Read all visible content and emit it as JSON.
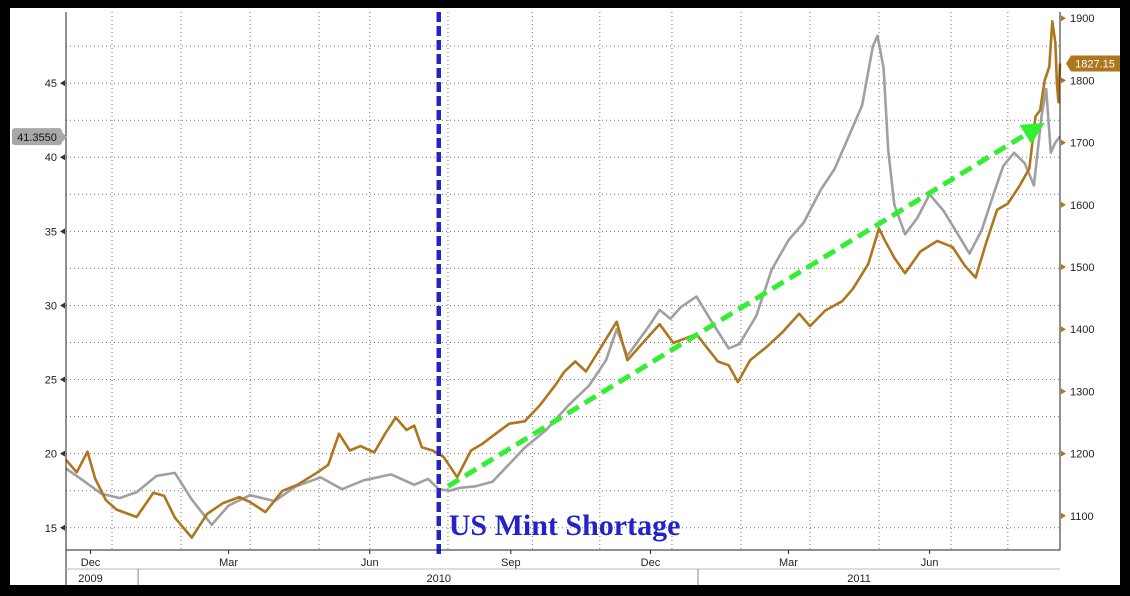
{
  "chart_data": {
    "type": "line",
    "title": "",
    "xlabel": "",
    "x_axis": {
      "range": [
        "2009-11-15",
        "2011-08-25"
      ],
      "month_ticks": [
        {
          "date": "2009-12-01",
          "label": "Dec"
        },
        {
          "date": "2010-03-01",
          "label": "Mar"
        },
        {
          "date": "2010-06-01",
          "label": "Jun"
        },
        {
          "date": "2010-09-01",
          "label": "Sep"
        },
        {
          "date": "2010-12-01",
          "label": "Dec"
        },
        {
          "date": "2011-03-01",
          "label": "Mar"
        },
        {
          "date": "2011-06-01",
          "label": "Jun"
        }
      ],
      "year_labels": [
        {
          "date": "2009-12-01",
          "label": "2009"
        },
        {
          "date": "2010-07-16",
          "label": "2010"
        },
        {
          "date": "2011-04-16",
          "label": "2011"
        }
      ],
      "year_dividers": [
        "2010-01-01",
        "2011-01-01"
      ],
      "gridlines": [
        "2009-12-15",
        "2010-01-29",
        "2010-03-15",
        "2010-04-29",
        "2010-06-01",
        "2010-07-22",
        "2010-09-15",
        "2010-10-29",
        "2010-12-15",
        "2011-01-29",
        "2011-03-15",
        "2011-04-29",
        "2011-06-15",
        "2011-07-22"
      ]
    },
    "y_left": {
      "range": [
        13.5,
        49.8
      ],
      "ticks": [
        15,
        20,
        25,
        30,
        35,
        40,
        45
      ],
      "gridlines": [
        17.5,
        22.5,
        27.5,
        32.5,
        37.5,
        42.5,
        47.5
      ],
      "current_value_label": "41.3550",
      "current_value": 41.355
    },
    "y_right": {
      "range": [
        1045,
        1910
      ],
      "ticks": [
        1100,
        1200,
        1300,
        1400,
        1500,
        1600,
        1700,
        1800,
        1900
      ],
      "current_value_label": "1827.15",
      "current_value": 1827.15
    },
    "grid": true,
    "series": [
      {
        "color": "#a0a0a0",
        "axis": "left",
        "points": [
          [
            "2009-11-15",
            19.0
          ],
          [
            "2009-11-26",
            18.2
          ],
          [
            "2009-12-08",
            17.3
          ],
          [
            "2009-12-20",
            17.0
          ],
          [
            "2009-12-31",
            17.4
          ],
          [
            "2010-01-13",
            18.5
          ],
          [
            "2010-01-25",
            18.7
          ],
          [
            "2010-02-05",
            16.9
          ],
          [
            "2010-02-18",
            15.2
          ],
          [
            "2010-03-01",
            16.5
          ],
          [
            "2010-03-15",
            17.2
          ],
          [
            "2010-03-31",
            16.8
          ],
          [
            "2010-04-14",
            17.8
          ],
          [
            "2010-04-30",
            18.4
          ],
          [
            "2010-05-14",
            17.6
          ],
          [
            "2010-05-28",
            18.2
          ],
          [
            "2010-06-15",
            18.6
          ],
          [
            "2010-06-30",
            17.9
          ],
          [
            "2010-07-09",
            18.3
          ],
          [
            "2010-07-16",
            17.6
          ],
          [
            "2010-07-23",
            17.5
          ],
          [
            "2010-07-30",
            17.7
          ],
          [
            "2010-08-09",
            17.8
          ],
          [
            "2010-08-20",
            18.1
          ],
          [
            "2010-08-31",
            19.3
          ],
          [
            "2010-09-10",
            20.4
          ],
          [
            "2010-09-24",
            21.6
          ],
          [
            "2010-10-08",
            23.2
          ],
          [
            "2010-10-22",
            24.6
          ],
          [
            "2010-11-02",
            26.3
          ],
          [
            "2010-11-09",
            28.4
          ],
          [
            "2010-11-16",
            26.6
          ],
          [
            "2010-11-30",
            28.6
          ],
          [
            "2010-12-07",
            29.7
          ],
          [
            "2010-12-14",
            29.1
          ],
          [
            "2010-12-21",
            29.9
          ],
          [
            "2010-12-31",
            30.6
          ],
          [
            "2011-01-10",
            28.9
          ],
          [
            "2011-01-21",
            27.1
          ],
          [
            "2011-01-28",
            27.4
          ],
          [
            "2011-02-08",
            29.3
          ],
          [
            "2011-02-18",
            32.4
          ],
          [
            "2011-03-01",
            34.4
          ],
          [
            "2011-03-11",
            35.6
          ],
          [
            "2011-03-22",
            37.8
          ],
          [
            "2011-03-31",
            39.2
          ],
          [
            "2011-04-08",
            41.1
          ],
          [
            "2011-04-18",
            43.5
          ],
          [
            "2011-04-25",
            47.5
          ],
          [
            "2011-04-28",
            48.2
          ],
          [
            "2011-05-02",
            46.0
          ],
          [
            "2011-05-05",
            40.5
          ],
          [
            "2011-05-09",
            36.8
          ],
          [
            "2011-05-16",
            34.8
          ],
          [
            "2011-05-24",
            35.9
          ],
          [
            "2011-06-01",
            37.5
          ],
          [
            "2011-06-10",
            36.4
          ],
          [
            "2011-06-20",
            34.7
          ],
          [
            "2011-06-27",
            33.5
          ],
          [
            "2011-07-05",
            35.1
          ],
          [
            "2011-07-12",
            37.3
          ],
          [
            "2011-07-19",
            39.4
          ],
          [
            "2011-07-26",
            40.3
          ],
          [
            "2011-08-02",
            39.6
          ],
          [
            "2011-08-08",
            38.1
          ],
          [
            "2011-08-13",
            42.8
          ],
          [
            "2011-08-16",
            44.6
          ],
          [
            "2011-08-19",
            40.3
          ],
          [
            "2011-08-22",
            41.0
          ],
          [
            "2011-08-25",
            41.4
          ]
        ]
      },
      {
        "color": "#b0761e",
        "axis": "right",
        "points": [
          [
            "2009-11-15",
            1190
          ],
          [
            "2009-11-22",
            1170
          ],
          [
            "2009-11-29",
            1203
          ],
          [
            "2009-12-04",
            1160
          ],
          [
            "2009-12-11",
            1125
          ],
          [
            "2009-12-18",
            1110
          ],
          [
            "2009-12-31",
            1098
          ],
          [
            "2010-01-11",
            1137
          ],
          [
            "2010-01-18",
            1132
          ],
          [
            "2010-01-25",
            1097
          ],
          [
            "2010-02-05",
            1065
          ],
          [
            "2010-02-15",
            1103
          ],
          [
            "2010-02-25",
            1120
          ],
          [
            "2010-03-08",
            1130
          ],
          [
            "2010-03-15",
            1122
          ],
          [
            "2010-03-25",
            1106
          ],
          [
            "2010-04-05",
            1140
          ],
          [
            "2010-04-15",
            1150
          ],
          [
            "2010-04-28",
            1170
          ],
          [
            "2010-05-05",
            1182
          ],
          [
            "2010-05-12",
            1232
          ],
          [
            "2010-05-19",
            1205
          ],
          [
            "2010-05-26",
            1212
          ],
          [
            "2010-06-04",
            1202
          ],
          [
            "2010-06-11",
            1232
          ],
          [
            "2010-06-18",
            1258
          ],
          [
            "2010-06-25",
            1238
          ],
          [
            "2010-06-30",
            1245
          ],
          [
            "2010-07-05",
            1210
          ],
          [
            "2010-07-12",
            1205
          ],
          [
            "2010-07-19",
            1195
          ],
          [
            "2010-07-28",
            1162
          ],
          [
            "2010-08-06",
            1205
          ],
          [
            "2010-08-13",
            1215
          ],
          [
            "2010-08-20",
            1228
          ],
          [
            "2010-08-31",
            1248
          ],
          [
            "2010-09-10",
            1252
          ],
          [
            "2010-09-20",
            1278
          ],
          [
            "2010-09-30",
            1310
          ],
          [
            "2010-10-06",
            1332
          ],
          [
            "2010-10-13",
            1348
          ],
          [
            "2010-10-20",
            1332
          ],
          [
            "2010-11-04",
            1392
          ],
          [
            "2010-11-09",
            1412
          ],
          [
            "2010-11-16",
            1350
          ],
          [
            "2010-11-26",
            1378
          ],
          [
            "2010-12-07",
            1408
          ],
          [
            "2010-12-16",
            1378
          ],
          [
            "2010-12-31",
            1392
          ],
          [
            "2011-01-07",
            1370
          ],
          [
            "2011-01-14",
            1348
          ],
          [
            "2011-01-21",
            1342
          ],
          [
            "2011-01-27",
            1315
          ],
          [
            "2011-02-04",
            1350
          ],
          [
            "2011-02-15",
            1372
          ],
          [
            "2011-02-25",
            1395
          ],
          [
            "2011-03-08",
            1425
          ],
          [
            "2011-03-15",
            1405
          ],
          [
            "2011-03-25",
            1430
          ],
          [
            "2011-04-05",
            1445
          ],
          [
            "2011-04-12",
            1465
          ],
          [
            "2011-04-22",
            1505
          ],
          [
            "2011-04-29",
            1562
          ],
          [
            "2011-05-03",
            1542
          ],
          [
            "2011-05-09",
            1515
          ],
          [
            "2011-05-16",
            1490
          ],
          [
            "2011-05-26",
            1525
          ],
          [
            "2011-06-06",
            1542
          ],
          [
            "2011-06-16",
            1532
          ],
          [
            "2011-06-24",
            1502
          ],
          [
            "2011-07-01",
            1483
          ],
          [
            "2011-07-08",
            1540
          ],
          [
            "2011-07-15",
            1592
          ],
          [
            "2011-07-22",
            1602
          ],
          [
            "2011-07-29",
            1628
          ],
          [
            "2011-08-05",
            1658
          ],
          [
            "2011-08-09",
            1742
          ],
          [
            "2011-08-12",
            1752
          ],
          [
            "2011-08-15",
            1800
          ],
          [
            "2011-08-18",
            1822
          ],
          [
            "2011-08-20",
            1895
          ],
          [
            "2011-08-22",
            1860
          ],
          [
            "2011-08-23",
            1795
          ],
          [
            "2011-08-24",
            1765
          ],
          [
            "2011-08-25",
            1827
          ]
        ]
      }
    ],
    "annotations": [
      {
        "type": "vline",
        "date": "2010-07-16",
        "color": "#2323c8",
        "style": "dashed"
      },
      {
        "type": "text",
        "text": "US Mint Shortage",
        "date": "2010-07-16",
        "value_left": 14.5,
        "color": "#2323c8"
      },
      {
        "type": "arrow",
        "from": [
          "2010-07-22",
          17.8
        ],
        "to": [
          "2011-08-10",
          42.0
        ],
        "color": "#33ee33",
        "style": "dashed"
      }
    ]
  }
}
